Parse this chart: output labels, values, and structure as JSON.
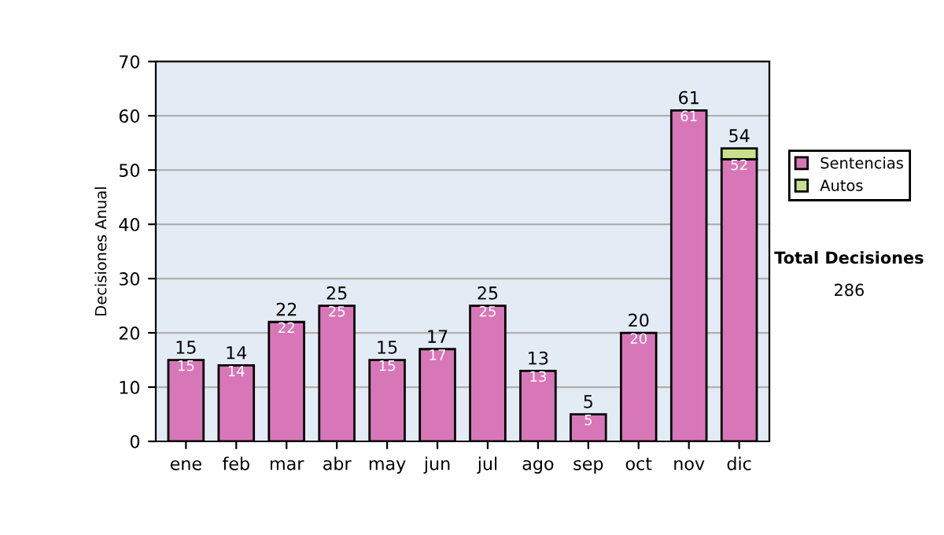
{
  "chart_data": {
    "type": "bar",
    "stacked": true,
    "ylabel": "Decisiones Anual",
    "categories": [
      "ene",
      "feb",
      "mar",
      "abr",
      "may",
      "jun",
      "jul",
      "ago",
      "sep",
      "oct",
      "nov",
      "dic"
    ],
    "series": [
      {
        "name": "Sentencias",
        "color": "#d877b8",
        "values": [
          15,
          14,
          22,
          25,
          15,
          17,
          25,
          13,
          5,
          20,
          61,
          52
        ],
        "value_labels": [
          "15",
          "14",
          "22",
          "25",
          "15",
          "17",
          "25",
          "13",
          "5",
          "20",
          "61",
          "52"
        ]
      },
      {
        "name": "Autos",
        "color": "#c8e08c",
        "values": [
          null,
          null,
          null,
          null,
          null,
          null,
          null,
          null,
          null,
          null,
          null,
          2
        ]
      }
    ],
    "totals": [
      "15",
      "14",
      "22",
      "25",
      "15",
      "17",
      "25",
      "13",
      "5",
      "20",
      "61",
      "54"
    ],
    "ylim": [
      0,
      70
    ],
    "yticks": [
      0,
      10,
      20,
      30,
      40,
      50,
      60,
      70
    ],
    "grid": "y",
    "legend": "right",
    "annotations": [
      "Total Decisiones",
      "286"
    ]
  }
}
